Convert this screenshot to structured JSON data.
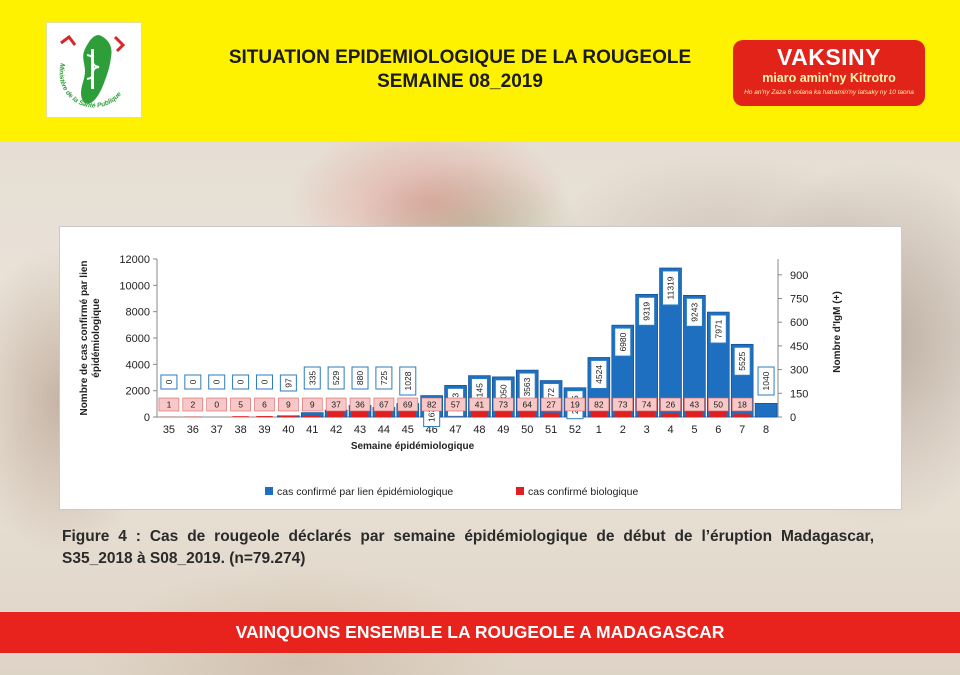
{
  "header": {
    "title_line1": "SITUATION EPIDEMIOLOGIQUE DE LA ROUGEOLE",
    "title_line2": "SEMAINE 08_2019",
    "logo_text": "Ministère de la Santé Publique",
    "brand_name": "VAKSINY",
    "brand_sub": "miaro amin'ny Kitrotro",
    "brand_tag": "Ho an'ny Zaza 6 volana ka hatramin'ny latsaky ny 10 taona"
  },
  "colors": {
    "header_yellow": "#fff200",
    "brand_red": "#e2231a",
    "footer_red": "#e8231d",
    "epi_blue": "#1f6fc0",
    "bio_red": "#e02020"
  },
  "chart_data": {
    "type": "bar",
    "categories": [
      "35",
      "36",
      "37",
      "38",
      "39",
      "40",
      "41",
      "42",
      "43",
      "44",
      "45",
      "46",
      "47",
      "48",
      "49",
      "50",
      "51",
      "52",
      "1",
      "2",
      "3",
      "4",
      "5",
      "6",
      "7",
      "8"
    ],
    "series": [
      {
        "name": "cas confirmé par lien épidémiologique",
        "axis": "left",
        "color": "#1f6fc0",
        "values": [
          0,
          0,
          0,
          0,
          0,
          97,
          335,
          529,
          880,
          725,
          1028,
          1630,
          2403,
          3145,
          3050,
          3563,
          2772,
          2225,
          4524,
          6980,
          9319,
          11319,
          9243,
          7971,
          5525,
          1040
        ]
      },
      {
        "name": "cas confirmé biologique",
        "axis": "right",
        "color": "#e02020",
        "values": [
          1,
          2,
          0,
          5,
          6,
          9,
          9,
          37,
          36,
          67,
          69,
          82,
          57,
          41,
          73,
          64,
          27,
          19,
          82,
          73,
          74,
          26,
          43,
          50,
          18,
          null
        ]
      }
    ],
    "xlabel": "Semaine épidémiologique",
    "ylabel_left": "Nombre de cas confirmé par lien épidémiologique",
    "ylabel_right": "Nombre d'IgM (+)",
    "ylim_left": [
      0,
      12000
    ],
    "yticks_left": [
      0,
      2000,
      4000,
      6000,
      8000,
      10000,
      12000
    ],
    "ylim_right": [
      0,
      1000
    ],
    "yticks_right": [
      0,
      150,
      300,
      450,
      600,
      750,
      900
    ],
    "legend_position": "bottom",
    "grid": false
  },
  "caption": "Figure 4 : Cas de rougeole déclarés par semaine épidémiologique de début de l’éruption Madagascar, S35_2018 à S08_2019. (n=79.274)",
  "footer": {
    "text": "VAINQUONS ENSEMBLE LA ROUGEOLE A MADAGASCAR"
  }
}
